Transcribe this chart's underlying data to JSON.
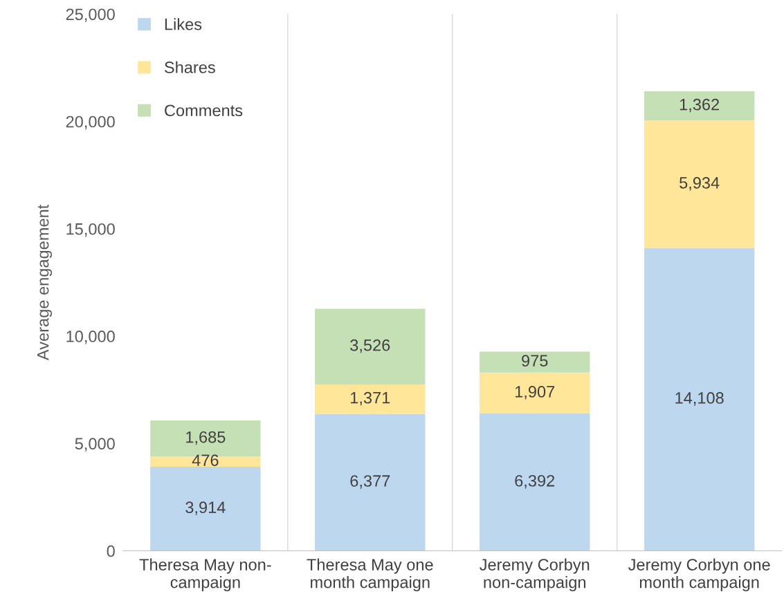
{
  "chart_data": {
    "type": "bar",
    "stacked": true,
    "ylabel": "Average engagement",
    "categories": [
      "Theresa May non-\ncampaign",
      "Theresa May one\nmonth campaign",
      "Jeremy Corbyn\nnon-campaign",
      "Jeremy Corbyn one\nmonth campaign"
    ],
    "series": [
      {
        "name": "Likes",
        "color": "#bdd7ee",
        "values": [
          3914,
          6377,
          6392,
          14108
        ],
        "value_labels": [
          "3,914",
          "6,377",
          "6,392",
          "14,108"
        ]
      },
      {
        "name": "Shares",
        "color": "#ffe699",
        "values": [
          476,
          1371,
          1907,
          5934
        ],
        "value_labels": [
          "476",
          "1,371",
          "1,907",
          "5,934"
        ]
      },
      {
        "name": "Comments",
        "color": "#c5e0b4",
        "values": [
          1685,
          3526,
          975,
          1362
        ],
        "value_labels": [
          "1,685",
          "3,526",
          "975",
          "1,362"
        ]
      }
    ],
    "ylim": [
      0,
      25000
    ],
    "yticks": [
      {
        "value": 0,
        "label": "0"
      },
      {
        "value": 5000,
        "label": "5,000"
      },
      {
        "value": 10000,
        "label": "10,000"
      },
      {
        "value": 15000,
        "label": "15,000"
      },
      {
        "value": 20000,
        "label": "20,000"
      },
      {
        "value": 25000,
        "label": "25,000"
      }
    ],
    "grid": "x",
    "legend": "top left"
  }
}
